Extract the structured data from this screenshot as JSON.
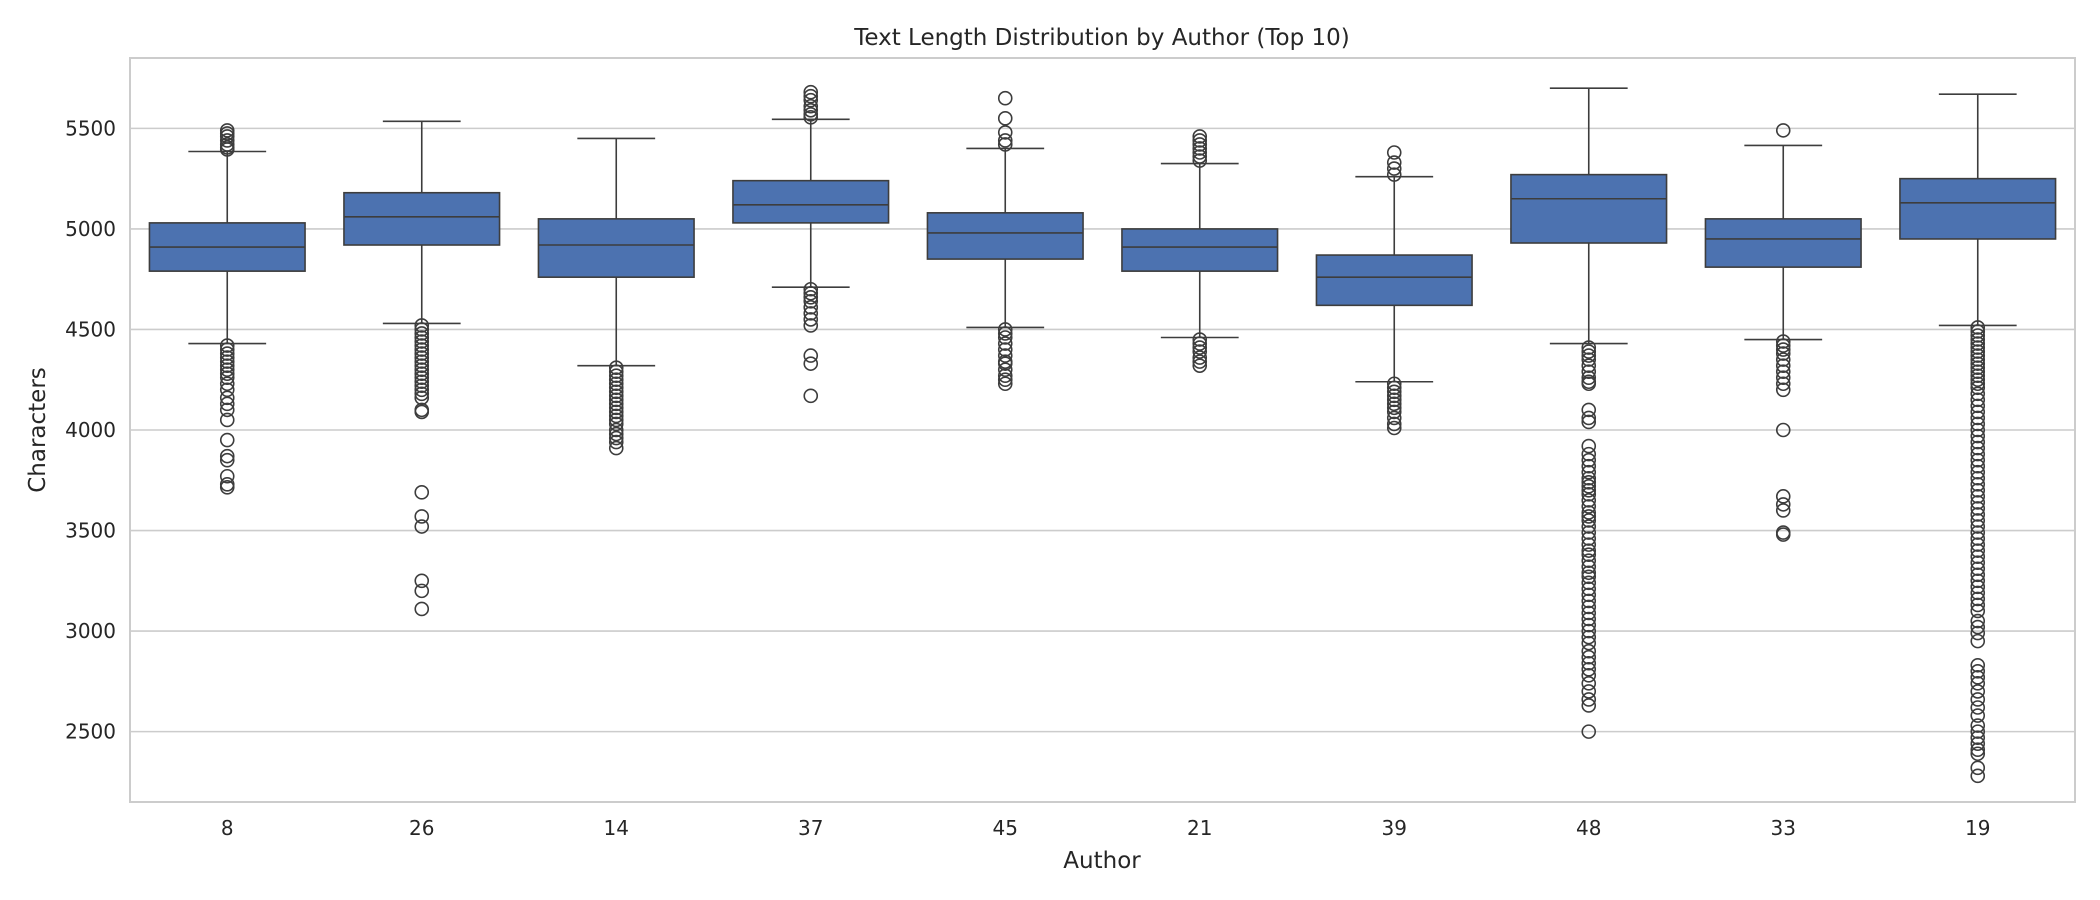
{
  "chart_data": {
    "type": "box",
    "title": "Text Length Distribution by Author (Top 10)",
    "xlabel": "Author",
    "ylabel": "Characters",
    "ylim": [
      2150,
      5850
    ],
    "yticks": [
      2500,
      3000,
      3500,
      4000,
      4500,
      5000,
      5500
    ],
    "grid": "horizontal",
    "box_color": "#4c72b0",
    "line_color": "#3d3d3d",
    "categories": [
      "8",
      "26",
      "14",
      "37",
      "45",
      "21",
      "39",
      "48",
      "33",
      "19"
    ],
    "boxes": [
      {
        "author": "8",
        "whisker_low": 4430,
        "q1": 4790,
        "median": 4910,
        "q3": 5030,
        "whisker_high": 5385,
        "outliers": [
          4420,
          4400,
          4380,
          4360,
          4340,
          4320,
          4300,
          4280,
          4260,
          4230,
          4200,
          4160,
          4130,
          4100,
          4050,
          3950,
          3870,
          3850,
          3770,
          3730,
          3715,
          5395,
          5405,
          5420,
          5440,
          5460,
          5475,
          5490
        ]
      },
      {
        "author": "26",
        "whisker_low": 4530,
        "q1": 4920,
        "median": 5060,
        "q3": 5180,
        "whisker_high": 5535,
        "outliers": [
          4520,
          4500,
          4480,
          4460,
          4440,
          4420,
          4400,
          4380,
          4360,
          4340,
          4320,
          4300,
          4280,
          4260,
          4240,
          4220,
          4200,
          4180,
          4160,
          4100,
          4090,
          3690,
          3570,
          3520,
          3250,
          3200,
          3110
        ]
      },
      {
        "author": "14",
        "whisker_low": 4320,
        "q1": 4760,
        "median": 4920,
        "q3": 5050,
        "whisker_high": 5450,
        "outliers": [
          4310,
          4290,
          4270,
          4250,
          4230,
          4210,
          4190,
          4170,
          4150,
          4130,
          4110,
          4090,
          4070,
          4050,
          4030,
          4000,
          3980,
          3960,
          3940,
          3910
        ]
      },
      {
        "author": "37",
        "whisker_low": 4710,
        "q1": 5030,
        "median": 5120,
        "q3": 5240,
        "whisker_high": 5545,
        "outliers": [
          4700,
          4680,
          4660,
          4640,
          4610,
          4580,
          4550,
          4520,
          4370,
          4330,
          4170,
          5555,
          5570,
          5590,
          5610,
          5640,
          5660,
          5680
        ]
      },
      {
        "author": "45",
        "whisker_low": 4510,
        "q1": 4850,
        "median": 4980,
        "q3": 5080,
        "whisker_high": 5400,
        "outliers": [
          4500,
          4480,
          4460,
          4430,
          4400,
          4370,
          4340,
          4330,
          4300,
          4270,
          4250,
          4230,
          5420,
          5440,
          5480,
          5550,
          5650
        ]
      },
      {
        "author": "21",
        "whisker_low": 4460,
        "q1": 4790,
        "median": 4910,
        "q3": 5000,
        "whisker_high": 5325,
        "outliers": [
          4450,
          4430,
          4410,
          4390,
          4360,
          4340,
          4320,
          5340,
          5360,
          5380,
          5400,
          5420,
          5440,
          5460
        ]
      },
      {
        "author": "39",
        "whisker_low": 4240,
        "q1": 4620,
        "median": 4760,
        "q3": 4870,
        "whisker_high": 5260,
        "outliers": [
          4230,
          4210,
          4190,
          4170,
          4150,
          4130,
          4110,
          4090,
          4060,
          4030,
          4010,
          5270,
          5300,
          5330,
          5380
        ]
      },
      {
        "author": "48",
        "whisker_low": 4430,
        "q1": 4930,
        "median": 5150,
        "q3": 5270,
        "whisker_high": 5700,
        "outliers": [
          4410,
          4390,
          4370,
          4350,
          4320,
          4290,
          4260,
          4240,
          4230,
          4100,
          4060,
          4040,
          3920,
          3880,
          3850,
          3820,
          3790,
          3760,
          3740,
          3720,
          3700,
          3680,
          3650,
          3620,
          3590,
          3570,
          3550,
          3520,
          3490,
          3460,
          3430,
          3400,
          3380,
          3350,
          3320,
          3290,
          3270,
          3240,
          3210,
          3180,
          3150,
          3120,
          3090,
          3060,
          3030,
          3000,
          2970,
          2940,
          2900,
          2870,
          2840,
          2810,
          2780,
          2740,
          2700,
          2660,
          2630,
          2500
        ]
      },
      {
        "author": "33",
        "whisker_low": 4450,
        "q1": 4810,
        "median": 4950,
        "q3": 5050,
        "whisker_high": 5415,
        "outliers": [
          4440,
          4420,
          4400,
          4380,
          4350,
          4320,
          4290,
          4260,
          4230,
          4200,
          4000,
          3670,
          3630,
          3600,
          3490,
          3480,
          5490
        ]
      },
      {
        "author": "19",
        "whisker_low": 4520,
        "q1": 4950,
        "median": 5130,
        "q3": 5250,
        "whisker_high": 5670,
        "outliers": [
          4510,
          4490,
          4470,
          4450,
          4430,
          4410,
          4390,
          4370,
          4350,
          4330,
          4310,
          4290,
          4270,
          4250,
          4230,
          4210,
          4180,
          4150,
          4120,
          4090,
          4060,
          4030,
          4000,
          3970,
          3940,
          3910,
          3880,
          3850,
          3820,
          3790,
          3760,
          3730,
          3700,
          3670,
          3640,
          3610,
          3580,
          3550,
          3520,
          3490,
          3460,
          3430,
          3400,
          3370,
          3340,
          3310,
          3280,
          3250,
          3220,
          3190,
          3160,
          3130,
          3100,
          3050,
          3020,
          2990,
          2950,
          2830,
          2800,
          2770,
          2740,
          2700,
          2660,
          2620,
          2580,
          2530,
          2500,
          2470,
          2440,
          2410,
          2390,
          2320,
          2280
        ]
      }
    ]
  }
}
